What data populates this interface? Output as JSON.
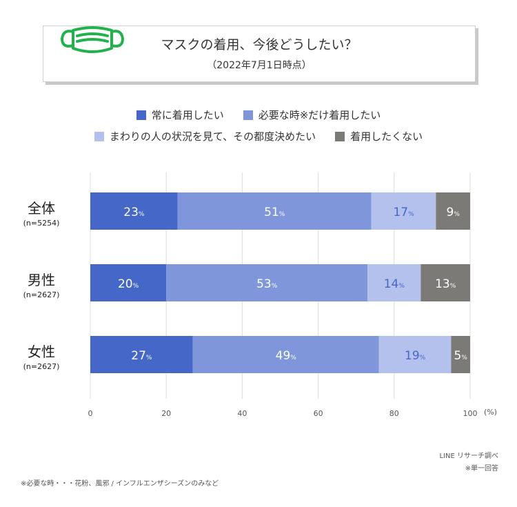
{
  "header": {
    "title": "マスクの着用、今後どうしたい？",
    "subtitle": "（2022年7月1日時点）",
    "icon": "mask-icon"
  },
  "colors": {
    "always": "#4467c8",
    "necessary": "#7f97da",
    "situational": "#b3c1ec",
    "none": "#7c7a76",
    "grid": "#dcdcdc",
    "icon": "#22b24c"
  },
  "chart_data": {
    "type": "bar",
    "orientation": "horizontal",
    "stacked": true,
    "title": "マスクの着用、今後どうしたい？",
    "subtitle": "（2022年7月1日時点）",
    "categories": [
      {
        "name": "全体",
        "n": "(n=5254)"
      },
      {
        "name": "男性",
        "n": "(n=2627)"
      },
      {
        "name": "女性",
        "n": "(n=2627)"
      }
    ],
    "series": [
      {
        "name": "常に着用したい",
        "values": [
          23,
          20,
          27
        ]
      },
      {
        "name": "必要な時※だけ着用したい",
        "values": [
          51,
          53,
          49
        ]
      },
      {
        "name": "まわりの人の状況を見て、その都度決めたい",
        "values": [
          17,
          14,
          19
        ]
      },
      {
        "name": "着用したくない",
        "values": [
          9,
          13,
          5
        ]
      }
    ],
    "value_suffix": "%",
    "xlim": [
      0,
      100
    ],
    "xticks": [
      "0",
      "20",
      "40",
      "60",
      "80",
      "100"
    ],
    "xunit": "(%)",
    "grid": true,
    "legend_position": "top"
  },
  "notes": {
    "source": "LINE リサーチ調べ",
    "answer_type": "※単一回答",
    "footnote": "※必要な時・・・花粉、風邪 / インフルエンザシーズンのみなど"
  }
}
